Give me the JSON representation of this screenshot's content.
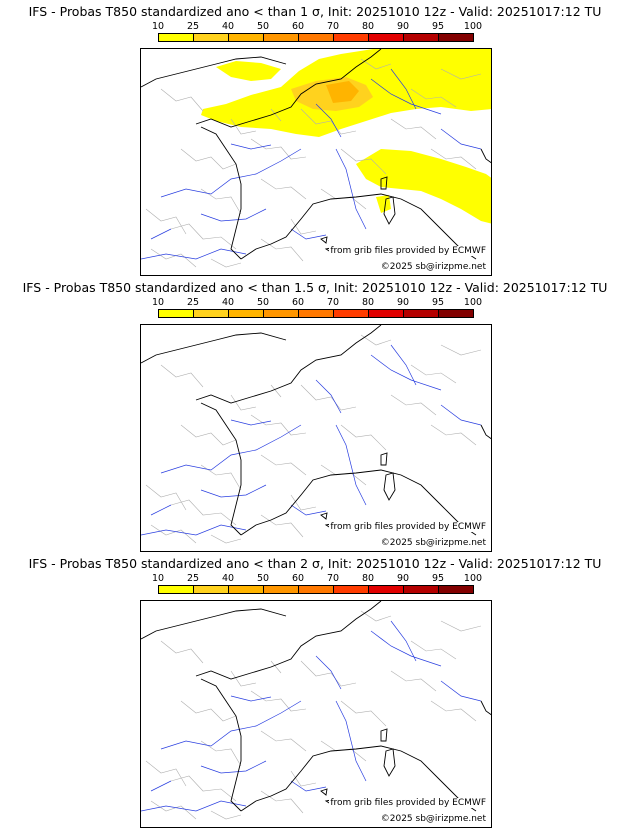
{
  "colorbar": {
    "ticks": [
      "10",
      "25",
      "40",
      "50",
      "60",
      "70",
      "80",
      "90",
      "95",
      "100"
    ],
    "colors": [
      "#ffff00",
      "#ffd21e",
      "#ffb400",
      "#ff9600",
      "#ff7800",
      "#ff3c00",
      "#e10000",
      "#b40000",
      "#820000"
    ]
  },
  "panels": [
    {
      "title": "IFS - Probas T850  standardized ano < than 1 σ, Init: 20251010 12z - Valid: 20251017:12 TU",
      "credit_source": "from grib files provided by ECMWF",
      "credit_copyright": "©2025 sb@irizpme.net",
      "has_probability_field": true
    },
    {
      "title": "IFS - Probas T850  standardized ano < than 1.5 σ, Init: 20251010 12z - Valid: 20251017:12 TU",
      "credit_source": "from grib files provided by ECMWF",
      "credit_copyright": "©2025 sb@irizpme.net",
      "has_probability_field": false
    },
    {
      "title": "IFS - Probas T850  standardized ano < than 2 σ, Init: 20251010 12z - Valid: 20251017:12 TU",
      "credit_source": "from grib files provided by ECMWF",
      "credit_copyright": "©2025 sb@irizpme.net",
      "has_probability_field": false
    }
  ]
}
